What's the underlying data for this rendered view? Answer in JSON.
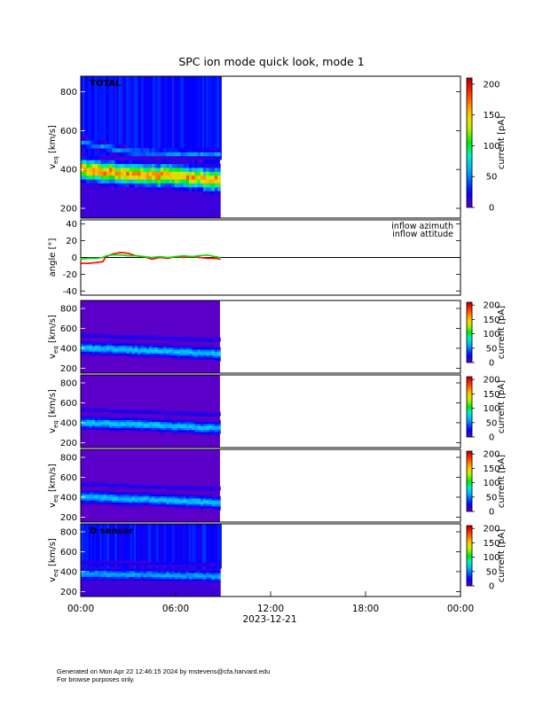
{
  "title": "SPC ion mode quick look, mode 1",
  "footer": {
    "generated": "Generated on Mon Apr 22 12:46:15 2024 by mstevens@cfa.harvard.edu",
    "note": "For browse purposes only."
  },
  "x_axis": {
    "ticks": [
      "00:00",
      "06:00",
      "12:00",
      "18:00",
      "00:00"
    ],
    "tick_hours": [
      0,
      6,
      12,
      18,
      24
    ],
    "range_hours": [
      0,
      24
    ],
    "date": "2023-12-21",
    "data_end_hour": 8.8
  },
  "colorbar": {
    "label": "current [pA]",
    "ticks": [
      0,
      50,
      100,
      150,
      200
    ],
    "range": [
      0,
      210
    ]
  },
  "panels": {
    "total": {
      "label": "TOTAL",
      "ylabel_main": "v",
      "ylabel_sub": "eq",
      "ylabel_unit": " [km/s]",
      "yticks": [
        200,
        400,
        600,
        800
      ],
      "yrange": [
        150,
        880
      ]
    },
    "angle": {
      "ylabel": "angle [°]",
      "yticks": [
        -40,
        -20,
        0,
        20,
        40
      ],
      "yrange": [
        -45,
        45
      ],
      "zero_line": 0
    },
    "sensor_a": {
      "label": "",
      "ylabel_main": "v",
      "ylabel_sub": "eq",
      "ylabel_unit": " [km/s]",
      "yticks": [
        200,
        400,
        600,
        800
      ],
      "yrange": [
        150,
        880
      ]
    },
    "sensor_b": {
      "label": "",
      "ylabel_main": "v",
      "ylabel_sub": "eq",
      "ylabel_unit": " [km/s]",
      "yticks": [
        200,
        400,
        600,
        800
      ],
      "yrange": [
        150,
        880
      ]
    },
    "sensor_c": {
      "label": "",
      "ylabel_main": "v",
      "ylabel_sub": "eq",
      "ylabel_unit": " [km/s]",
      "yticks": [
        200,
        400,
        600,
        800
      ],
      "yrange": [
        150,
        880
      ]
    },
    "sensor_d": {
      "label": "D sensor",
      "ylabel_main": "v",
      "ylabel_sub": "eq",
      "ylabel_unit": " [km/s]",
      "yticks": [
        200,
        400,
        600,
        800
      ],
      "yrange": [
        150,
        880
      ]
    }
  },
  "chart_data": [
    {
      "type": "heatmap",
      "panel": "total",
      "x_range_hours": [
        0,
        8.8
      ],
      "core_speed_kms": [
        [
          0,
          390
        ],
        [
          1,
          385
        ],
        [
          2,
          375
        ],
        [
          3,
          370
        ],
        [
          4,
          365
        ],
        [
          5,
          360
        ],
        [
          6,
          355
        ],
        [
          7,
          350
        ],
        [
          8,
          340
        ],
        [
          8.8,
          335
        ]
      ],
      "core_current_pA": 160,
      "secondary_band_kms": [
        [
          0,
          530
        ],
        [
          3,
          480
        ],
        [
          8.8,
          470
        ]
      ],
      "secondary_current_pA": 55,
      "background_current_pA": 25
    },
    {
      "type": "line",
      "panel": "angle",
      "series": [
        {
          "name": "inflow azimuth",
          "color": "#ff0000",
          "x": [
            0,
            0.5,
            1,
            1.4,
            1.6,
            2,
            2.5,
            3,
            3.5,
            4,
            4.5,
            5,
            5.5,
            6,
            6.5,
            7,
            7.5,
            8,
            8.5,
            8.8
          ],
          "y": [
            -7,
            -7,
            -6,
            -5,
            1,
            4,
            6,
            5,
            2,
            1,
            -2,
            0,
            -1,
            1,
            0,
            1,
            0,
            -1,
            -1,
            -2
          ]
        },
        {
          "name": "inflow attitude",
          "color": "#00dd00",
          "x": [
            0,
            0.5,
            1,
            1.4,
            1.6,
            2,
            2.5,
            3,
            3.5,
            4,
            4.5,
            5,
            5.5,
            6,
            6.5,
            7,
            7.5,
            8,
            8.5,
            8.8
          ],
          "y": [
            -2,
            -1,
            -1,
            0,
            2,
            3,
            3,
            2,
            2,
            1,
            0,
            1,
            0,
            1,
            2,
            1,
            2,
            3,
            1,
            0
          ]
        }
      ]
    },
    {
      "type": "heatmap",
      "panel": "sensor_a",
      "x_range_hours": [
        0,
        8.8
      ],
      "core_speed_kms": [
        [
          0,
          395
        ],
        [
          4,
          370
        ],
        [
          8.8,
          335
        ]
      ],
      "core_current_pA": 70,
      "secondary_band_kms": [
        [
          0,
          520
        ],
        [
          8.8,
          470
        ]
      ],
      "secondary_current_pA": 20,
      "background_current_pA": 0
    },
    {
      "type": "heatmap",
      "panel": "sensor_b",
      "x_range_hours": [
        0,
        8.8
      ],
      "core_speed_kms": [
        [
          0,
          395
        ],
        [
          4,
          370
        ],
        [
          8.8,
          335
        ]
      ],
      "core_current_pA": 70,
      "secondary_band_kms": [
        [
          0,
          520
        ],
        [
          8.8,
          470
        ]
      ],
      "secondary_current_pA": 20,
      "background_current_pA": 0
    },
    {
      "type": "heatmap",
      "panel": "sensor_c",
      "x_range_hours": [
        0,
        8.8
      ],
      "core_speed_kms": [
        [
          0,
          395
        ],
        [
          4,
          370
        ],
        [
          8.8,
          335
        ]
      ],
      "core_current_pA": 70,
      "secondary_band_kms": [
        [
          0,
          520
        ],
        [
          8.8,
          470
        ]
      ],
      "secondary_current_pA": 20,
      "background_current_pA": 0
    },
    {
      "type": "heatmap",
      "panel": "sensor_d",
      "x_range_hours": [
        0,
        8.8
      ],
      "core_speed_kms": [
        [
          0,
          370
        ],
        [
          4,
          360
        ],
        [
          8.8,
          345
        ]
      ],
      "core_current_pA": 60,
      "secondary_band_kms": [
        [
          0,
          480
        ],
        [
          8.8,
          460
        ]
      ],
      "secondary_current_pA": 20,
      "background_current_pA": 25
    }
  ]
}
